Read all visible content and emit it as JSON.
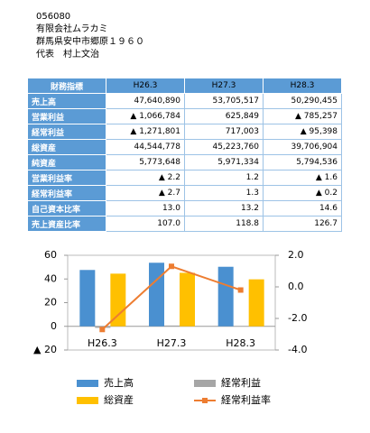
{
  "header": {
    "lines": [
      "056080",
      "有限会社ムラカミ",
      "群馬県安中市郷原１９６０",
      "代表　村上文治"
    ]
  },
  "table": {
    "columns": [
      "財務指標",
      "H26.3",
      "H27.3",
      "H28.3"
    ],
    "rows": [
      [
        "売上高",
        "47,640,890",
        "53,705,517",
        "50,290,455"
      ],
      [
        "営業利益",
        "▲ 1,066,784",
        "625,849",
        "▲ 785,257"
      ],
      [
        "経常利益",
        "▲ 1,271,801",
        "717,003",
        "▲ 95,398"
      ],
      [
        "総資産",
        "44,544,778",
        "45,223,760",
        "39,706,904"
      ],
      [
        "純資産",
        "5,773,648",
        "5,971,334",
        "5,794,536"
      ],
      [
        "営業利益率",
        "▲ 2.2",
        "1.2",
        "▲ 1.6"
      ],
      [
        "経常利益率",
        "▲ 2.7",
        "1.3",
        "▲ 0.2"
      ],
      [
        "自己資本比率",
        "13.0",
        "13.2",
        "14.6"
      ],
      [
        "売上資産比率",
        "107.0",
        "118.8",
        "126.7"
      ]
    ]
  },
  "chart_data": {
    "type": "bar",
    "categories": [
      "H26.3",
      "H27.3",
      "H28.3"
    ],
    "ylim": [
      -20,
      60
    ],
    "yticks": [
      {
        "value": -20,
        "label": "▲ 20"
      },
      0,
      20,
      40,
      60
    ],
    "y2lim": [
      -4,
      2
    ],
    "y2ticks": [
      {
        "value": -4,
        "label": "-4.0"
      },
      {
        "value": -2,
        "label": "-2.0"
      },
      {
        "value": 0,
        "label": "0.0"
      },
      {
        "value": 2,
        "label": "2.0"
      }
    ],
    "series": [
      {
        "name": "売上高",
        "type": "bar",
        "color": "#4a90d0",
        "values": [
          47.6,
          53.7,
          50.3
        ]
      },
      {
        "name": "経常利益",
        "type": "bar",
        "color": "#a6a6a6",
        "values": [
          -1.3,
          0.7,
          -0.1
        ]
      },
      {
        "name": "総資産",
        "type": "bar",
        "color": "#ffc000",
        "values": [
          44.5,
          45.2,
          39.7
        ]
      },
      {
        "name": "経常利益率",
        "type": "line",
        "axis": "y2",
        "color": "#ed7d31",
        "values": [
          -2.7,
          1.3,
          -0.2
        ]
      }
    ]
  }
}
